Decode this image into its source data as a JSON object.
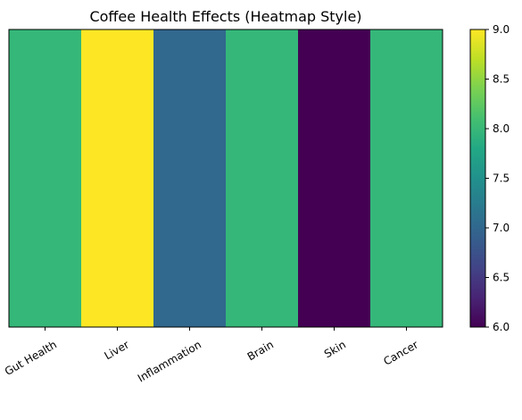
{
  "chart_data": {
    "type": "heatmap",
    "title": "Coffee Health Effects (Heatmap Style)",
    "xlabel": "",
    "ylabel": "",
    "categories": [
      "Gut Health",
      "Liver",
      "Inflammation",
      "Brain",
      "Skin",
      "Cancer"
    ],
    "values": [
      8,
      9,
      7,
      8,
      6,
      8
    ],
    "colorbar": {
      "range": [
        6.0,
        9.0
      ],
      "ticks": [
        6.0,
        6.5,
        7.0,
        7.5,
        8.0,
        8.5,
        9.0
      ],
      "tick_labels": [
        "6.0",
        "6.5",
        "7.0",
        "7.5",
        "8.0",
        "8.5",
        "9.0"
      ]
    },
    "colormap": "viridis",
    "cell_colors": [
      "#35b779",
      "#fde725",
      "#31688e",
      "#35b779",
      "#440154",
      "#35b779"
    ],
    "grid": false,
    "legend": "colorbar-right"
  }
}
